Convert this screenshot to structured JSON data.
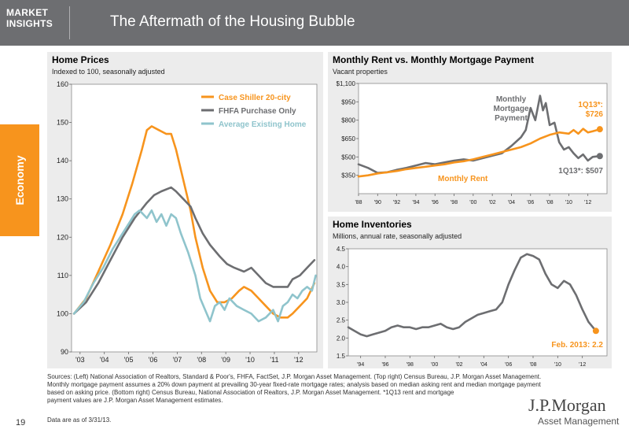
{
  "header": {
    "brand_line1": "MARKET",
    "brand_line2": "INSIGHTS",
    "title": "The Aftermath of the Housing Bubble"
  },
  "side_tab": {
    "label": "Economy"
  },
  "colors": {
    "header_bg": "#6d6e71",
    "accent": "#f7941d",
    "orange_series": "#f7941d",
    "gray_series": "#6d6e71",
    "blue_series": "#8fc4cc",
    "panel_bg": "#ececec"
  },
  "chart_data": [
    {
      "id": "home-prices",
      "type": "line",
      "title": "Home Prices",
      "subtitle": "Indexed to 100, seasonally adjusted",
      "xlabel": "",
      "ylabel": "",
      "ylim": [
        90,
        160
      ],
      "yticks": [
        90,
        100,
        110,
        120,
        130,
        140,
        150,
        160
      ],
      "xlim": [
        2002.9,
        2013.0
      ],
      "xticks": [
        {
          "v": 2003.25,
          "label": "'03"
        },
        {
          "v": 2004.25,
          "label": "'04"
        },
        {
          "v": 2005.25,
          "label": "'05"
        },
        {
          "v": 2006.25,
          "label": "'06"
        },
        {
          "v": 2007.25,
          "label": "'07"
        },
        {
          "v": 2008.25,
          "label": "'08"
        },
        {
          "v": 2009.25,
          "label": "'09"
        },
        {
          "v": 2010.25,
          "label": "'10"
        },
        {
          "v": 2011.25,
          "label": "'11"
        },
        {
          "v": 2012.25,
          "label": "'12"
        }
      ],
      "legend_position": "top-right",
      "series": [
        {
          "name": "Case Shiller 20-city",
          "color": "#f7941d",
          "x": [
            2003.0,
            2003.5,
            2004.0,
            2004.5,
            2005.0,
            2005.4,
            2005.8,
            2006.0,
            2006.2,
            2006.5,
            2006.8,
            2007.0,
            2007.2,
            2007.5,
            2007.8,
            2008.0,
            2008.3,
            2008.6,
            2008.9,
            2009.2,
            2009.5,
            2009.8,
            2010.0,
            2010.3,
            2010.6,
            2010.9,
            2011.2,
            2011.5,
            2011.8,
            2012.0,
            2012.3,
            2012.6,
            2012.9
          ],
          "y": [
            100,
            104,
            111,
            118,
            126,
            134,
            143,
            148,
            149,
            148,
            147,
            147,
            143,
            135,
            127,
            120,
            112,
            106,
            103,
            103,
            104,
            106,
            107,
            106,
            104,
            102,
            100,
            99,
            99,
            100,
            102,
            104,
            108
          ]
        },
        {
          "name": "FHFA Purchase Only",
          "color": "#6d6e71",
          "x": [
            2003.0,
            2003.5,
            2004.0,
            2004.5,
            2005.0,
            2005.5,
            2006.0,
            2006.3,
            2006.6,
            2007.0,
            2007.2,
            2007.5,
            2007.8,
            2008.0,
            2008.3,
            2008.6,
            2009.0,
            2009.3,
            2009.6,
            2010.0,
            2010.3,
            2010.6,
            2010.9,
            2011.2,
            2011.5,
            2011.8,
            2012.0,
            2012.3,
            2012.6,
            2012.9
          ],
          "y": [
            100,
            103,
            108,
            114,
            120,
            125,
            129,
            131,
            132,
            133,
            132,
            130,
            128,
            125,
            121,
            118,
            115,
            113,
            112,
            111,
            112,
            110,
            108,
            107,
            107,
            107,
            109,
            110,
            112,
            114
          ]
        },
        {
          "name": "Average Existing Home",
          "color": "#8fc4cc",
          "x": [
            2003.0,
            2003.4,
            2003.8,
            2004.2,
            2004.6,
            2005.0,
            2005.3,
            2005.5,
            2005.7,
            2006.0,
            2006.2,
            2006.4,
            2006.6,
            2006.8,
            2007.0,
            2007.2,
            2007.4,
            2007.7,
            2008.0,
            2008.2,
            2008.4,
            2008.6,
            2008.8,
            2009.0,
            2009.2,
            2009.4,
            2009.7,
            2010.0,
            2010.3,
            2010.6,
            2010.9,
            2011.2,
            2011.4,
            2011.6,
            2011.8,
            2012.0,
            2012.2,
            2012.4,
            2012.6,
            2012.8,
            2012.95
          ],
          "y": [
            100,
            103,
            108,
            112,
            117,
            121,
            124,
            126,
            127,
            125,
            127,
            124,
            126,
            123,
            126,
            125,
            121,
            116,
            110,
            104,
            101,
            98,
            102,
            103,
            101,
            104,
            102,
            101,
            100,
            98,
            99,
            101,
            98,
            102,
            103,
            105,
            104,
            106,
            107,
            106,
            110
          ]
        }
      ]
    },
    {
      "id": "rent-vs-mortgage",
      "type": "line",
      "title": "Monthly Rent vs. Monthly Mortgage Payment",
      "subtitle": "Vacant properties",
      "xlabel": "",
      "ylabel": "",
      "ylim": [
        200,
        1100
      ],
      "yticks": [
        {
          "v": 350,
          "label": "$350"
        },
        {
          "v": 500,
          "label": "$500"
        },
        {
          "v": 650,
          "label": "$650"
        },
        {
          "v": 800,
          "label": "$800"
        },
        {
          "v": 950,
          "label": "$950"
        },
        {
          "v": 1100,
          "label": "$1,100"
        }
      ],
      "xlim": [
        1988.0,
        2014.0
      ],
      "xticks": [
        {
          "v": 1988,
          "label": "'88"
        },
        {
          "v": 1990,
          "label": "'90"
        },
        {
          "v": 1992,
          "label": "'92"
        },
        {
          "v": 1994,
          "label": "'94"
        },
        {
          "v": 1996,
          "label": "'96"
        },
        {
          "v": 1998,
          "label": "'98"
        },
        {
          "v": 2000,
          "label": "'00"
        },
        {
          "v": 2002,
          "label": "'02"
        },
        {
          "v": 2004,
          "label": "'04"
        },
        {
          "v": 2006,
          "label": "'06"
        },
        {
          "v": 2008,
          "label": "'08"
        },
        {
          "v": 2010,
          "label": "'10"
        },
        {
          "v": 2012,
          "label": "'12"
        }
      ],
      "series": [
        {
          "name": "Monthly Mortgage Payment",
          "color": "#6d6e71",
          "x": [
            1988,
            1989,
            1990,
            1991,
            1992,
            1993,
            1994,
            1995,
            1996,
            1997,
            1998,
            1999,
            2000,
            2001,
            2002,
            2003,
            2004,
            2005,
            2005.5,
            2006,
            2006.5,
            2007,
            2007.3,
            2007.6,
            2008,
            2008.5,
            2009,
            2009.5,
            2010,
            2010.5,
            2011,
            2011.5,
            2012,
            2012.5,
            2013.25
          ],
          "y": [
            440,
            410,
            370,
            375,
            395,
            410,
            430,
            450,
            440,
            455,
            470,
            480,
            470,
            490,
            510,
            530,
            590,
            660,
            720,
            900,
            800,
            1000,
            880,
            940,
            760,
            780,
            620,
            560,
            580,
            530,
            490,
            520,
            470,
            500,
            507
          ]
        },
        {
          "name": "Monthly Rent",
          "color": "#f7941d",
          "x": [
            1988,
            1989,
            1990,
            1991,
            1992,
            1993,
            1994,
            1995,
            1996,
            1997,
            1998,
            1999,
            2000,
            2001,
            2002,
            2003,
            2004,
            2005,
            2006,
            2007,
            2008,
            2009,
            2010,
            2010.5,
            2011,
            2011.5,
            2012,
            2012.5,
            2013.25
          ],
          "y": [
            340,
            350,
            365,
            375,
            385,
            400,
            410,
            420,
            430,
            440,
            455,
            465,
            480,
            500,
            520,
            540,
            560,
            580,
            610,
            650,
            680,
            700,
            690,
            720,
            690,
            730,
            700,
            710,
            726
          ]
        }
      ],
      "annotations": [
        {
          "text_lines": [
            "Monthly",
            "Mortgage",
            "Payment"
          ],
          "series": "Monthly Mortgage Payment"
        },
        {
          "text_lines": [
            "Monthly Rent"
          ],
          "series": "Monthly Rent"
        },
        {
          "text_lines": [
            "1Q13*:",
            "$726"
          ],
          "series": "Monthly Rent"
        },
        {
          "text_lines": [
            "1Q13*: $507"
          ],
          "series": "Monthly Mortgage Payment"
        }
      ],
      "endpoints": [
        {
          "x": 2013.25,
          "y": 726,
          "color": "#f7941d"
        },
        {
          "x": 2013.25,
          "y": 507,
          "color": "#6d6e71"
        }
      ]
    },
    {
      "id": "home-inventories",
      "type": "line",
      "title": "Home Inventories",
      "subtitle": "Millions, annual rate, seasonally adjusted",
      "xlabel": "",
      "ylabel": "",
      "ylim": [
        1.5,
        4.5
      ],
      "yticks": [
        {
          "v": 1.5,
          "label": "1.5"
        },
        {
          "v": 2.0,
          "label": "2.0"
        },
        {
          "v": 2.5,
          "label": "2.5"
        },
        {
          "v": 3.0,
          "label": "3.0"
        },
        {
          "v": 3.5,
          "label": "3.5"
        },
        {
          "v": 4.0,
          "label": "4.0"
        },
        {
          "v": 4.5,
          "label": "4.5"
        }
      ],
      "xlim": [
        1993.0,
        2014.0
      ],
      "xticks": [
        {
          "v": 1994,
          "label": "'94"
        },
        {
          "v": 1996,
          "label": "'96"
        },
        {
          "v": 1998,
          "label": "'98"
        },
        {
          "v": 2000,
          "label": "'00"
        },
        {
          "v": 2002,
          "label": "'02"
        },
        {
          "v": 2004,
          "label": "'04"
        },
        {
          "v": 2006,
          "label": "'06"
        },
        {
          "v": 2008,
          "label": "'08"
        },
        {
          "v": 2010,
          "label": "'10"
        },
        {
          "v": 2012,
          "label": "'12"
        }
      ],
      "series": [
        {
          "name": "Home Inventories",
          "color": "#6d6e71",
          "x": [
            1993.0,
            1993.5,
            1994.0,
            1994.5,
            1995.0,
            1995.5,
            1996.0,
            1996.5,
            1997.0,
            1997.5,
            1998.0,
            1998.5,
            1999.0,
            1999.5,
            2000.0,
            2000.5,
            2001.0,
            2001.5,
            2002.0,
            2002.5,
            2003.0,
            2003.5,
            2004.0,
            2004.5,
            2005.0,
            2005.5,
            2006.0,
            2006.5,
            2007.0,
            2007.5,
            2008.0,
            2008.5,
            2009.0,
            2009.5,
            2010.0,
            2010.5,
            2011.0,
            2011.5,
            2012.0,
            2012.5,
            2013.1
          ],
          "y": [
            2.3,
            2.2,
            2.1,
            2.05,
            2.1,
            2.15,
            2.2,
            2.3,
            2.35,
            2.3,
            2.3,
            2.25,
            2.3,
            2.3,
            2.35,
            2.4,
            2.3,
            2.25,
            2.3,
            2.45,
            2.55,
            2.65,
            2.7,
            2.75,
            2.8,
            3.0,
            3.5,
            3.9,
            4.25,
            4.35,
            4.3,
            4.2,
            3.8,
            3.5,
            3.4,
            3.6,
            3.5,
            3.2,
            2.8,
            2.45,
            2.2
          ]
        }
      ],
      "annotations": [
        {
          "text_lines": [
            "Feb. 2013: 2.2"
          ],
          "series": "Home Inventories"
        }
      ],
      "endpoints": [
        {
          "x": 2013.1,
          "y": 2.2,
          "color": "#f7941d"
        }
      ]
    }
  ],
  "footer": {
    "sources_line1": "Sources: (Left) National Association of Realtors, Standard & Poor's, FHFA, FactSet, J.P. Morgan Asset Management. (Top right) Census Bureau, J.P. Morgan Asset Management.",
    "sources_line2": "Monthly mortgage payment assumes a 20% down payment at prevailing 30-year fixed-rate mortgage rates; analysis based on median asking rent and median mortgage payment",
    "sources_line3": "based on asking price. (Bottom right) Census Bureau, National Association of Realtors, J.P. Morgan Asset Management. *1Q13 rent and mortgage",
    "sources_line4": "payment values are J.P. Morgan Asset Management estimates.",
    "data_as_of": "Data are as of 3/31/13.",
    "page_number": "19"
  },
  "logo": {
    "name": "J.P.Morgan",
    "subtitle": "Asset Management"
  }
}
